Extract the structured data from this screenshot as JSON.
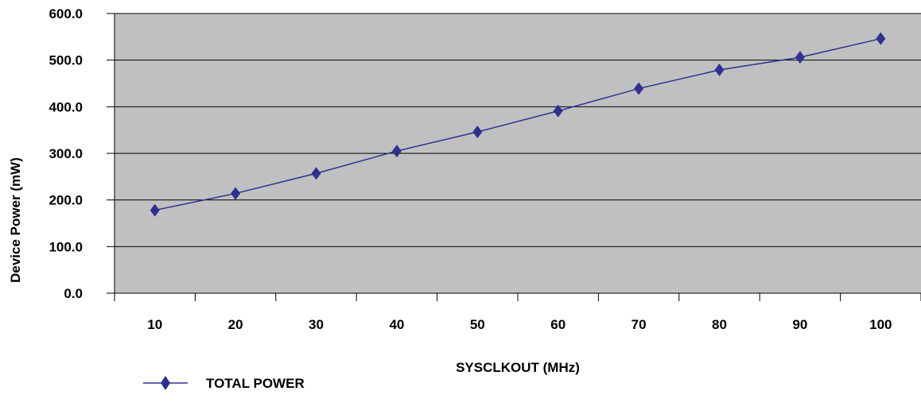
{
  "chart_data": {
    "type": "line",
    "title": "",
    "xlabel": "SYSCLKOUT (MHz)",
    "ylabel": "Device Power (mW)",
    "categories": [
      "10",
      "20",
      "30",
      "40",
      "50",
      "60",
      "70",
      "80",
      "90",
      "100"
    ],
    "ytick_labels": [
      "0.0",
      "100.0",
      "200.0",
      "300.0",
      "400.0",
      "500.0",
      "600.0"
    ],
    "ylim": [
      0,
      600
    ],
    "grid": true,
    "legend_position": "bottom-left",
    "plot_background": "#c0c0c0",
    "series": [
      {
        "name": "TOTAL POWER",
        "color": "#2e3192",
        "marker": "diamond",
        "values": [
          178,
          214,
          257,
          305,
          346,
          391,
          439,
          479,
          506,
          546
        ]
      }
    ]
  }
}
